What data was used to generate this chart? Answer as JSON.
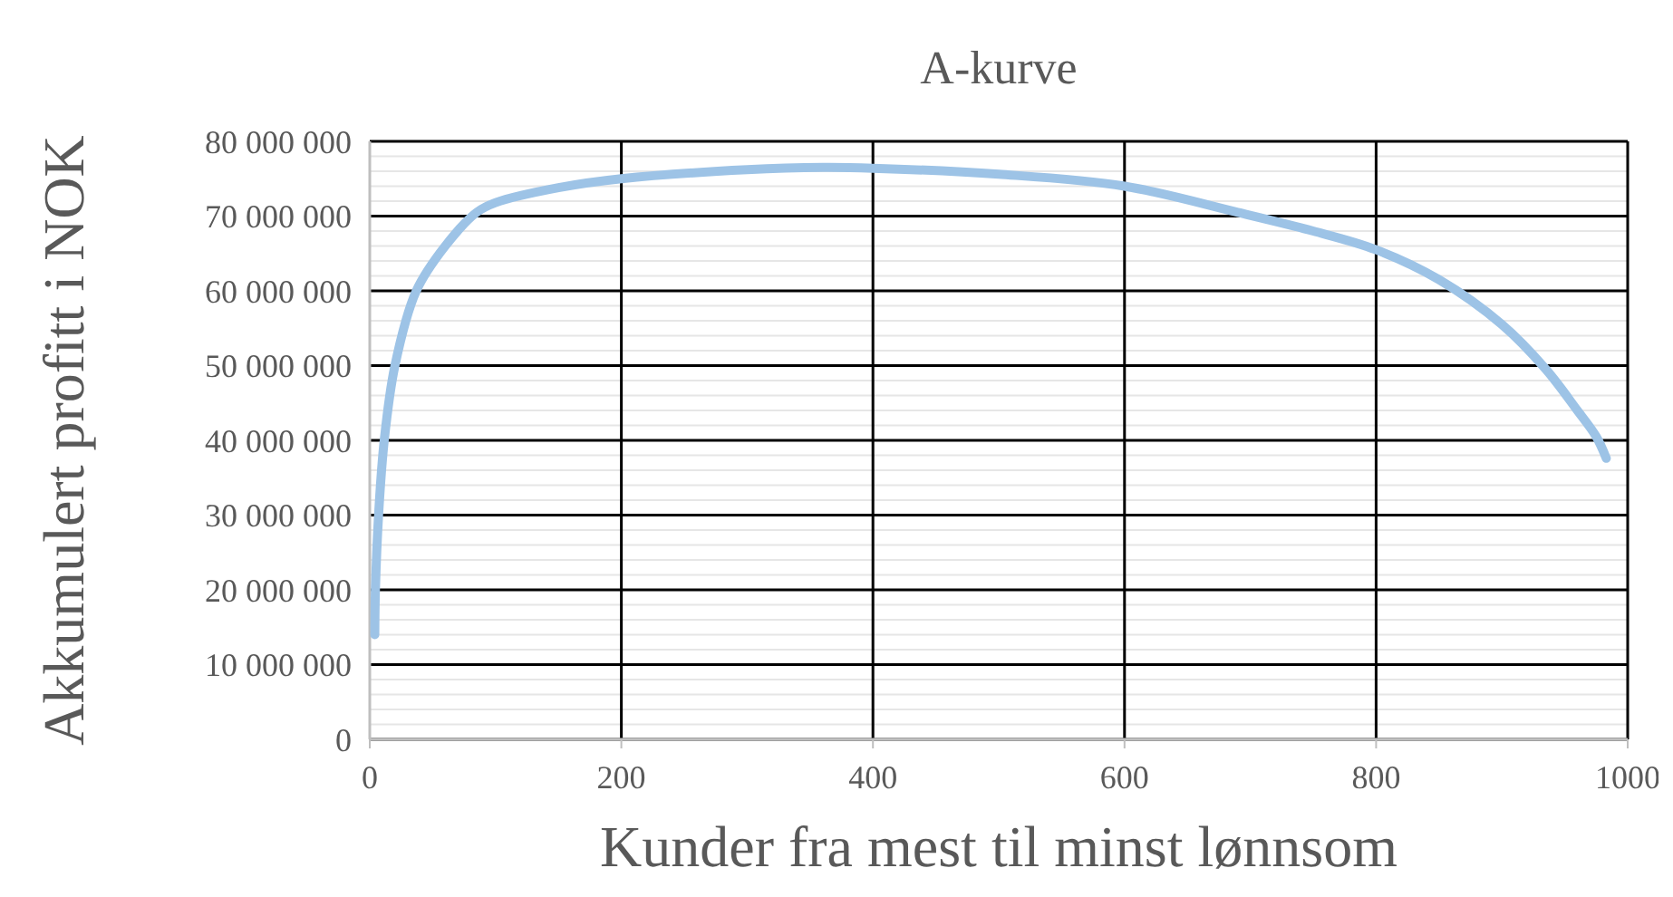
{
  "chart_data": {
    "type": "line",
    "title": "A-kurve",
    "xlabel": "Kunder fra mest til minst lønnsom",
    "ylabel": "Akkumulert profitt i NOK",
    "series": [
      {
        "color": "#9dc3e6",
        "x": [
          4,
          4.5,
          7,
          11.5,
          20,
          37,
          60,
          85,
          100,
          150,
          200,
          300,
          360,
          400,
          500,
          600,
          690,
          750,
          800,
          850,
          900,
          935,
          960,
          975,
          983
        ],
        "values": [
          14000000,
          20000000,
          30000000,
          40000000,
          50000000,
          60000000,
          66000000,
          70500000,
          71800000,
          73800000,
          75000000,
          76200000,
          76500000,
          76400000,
          75600000,
          74000000,
          70500000,
          68000000,
          65500000,
          61500000,
          55500000,
          49500000,
          44000000,
          40500000,
          37600000
        ]
      }
    ],
    "xlim": [
      0,
      1000
    ],
    "xticks": [
      0,
      200,
      400,
      600,
      800,
      1000
    ],
    "ylim": [
      0,
      80000000
    ],
    "yticks": [
      {
        "value": 0,
        "label": "0"
      },
      {
        "value": 2000000,
        "label": null
      },
      {
        "value": 4000000,
        "label": null
      },
      {
        "value": 6000000,
        "label": null
      },
      {
        "value": 8000000,
        "label": null
      },
      {
        "value": 10000000,
        "label": "10 000 000"
      },
      {
        "value": 12000000,
        "label": null
      },
      {
        "value": 14000000,
        "label": null
      },
      {
        "value": 16000000,
        "label": null
      },
      {
        "value": 18000000,
        "label": null
      },
      {
        "value": 20000000,
        "label": "20 000 000"
      },
      {
        "value": 22000000,
        "label": null
      },
      {
        "value": 24000000,
        "label": null
      },
      {
        "value": 26000000,
        "label": null
      },
      {
        "value": 28000000,
        "label": null
      },
      {
        "value": 30000000,
        "label": "30 000 000"
      },
      {
        "value": 32000000,
        "label": null
      },
      {
        "value": 34000000,
        "label": null
      },
      {
        "value": 36000000,
        "label": null
      },
      {
        "value": 38000000,
        "label": null
      },
      {
        "value": 40000000,
        "label": "40 000 000"
      },
      {
        "value": 42000000,
        "label": null
      },
      {
        "value": 44000000,
        "label": null
      },
      {
        "value": 46000000,
        "label": null
      },
      {
        "value": 48000000,
        "label": null
      },
      {
        "value": 50000000,
        "label": "50 000 000"
      },
      {
        "value": 52000000,
        "label": null
      },
      {
        "value": 54000000,
        "label": null
      },
      {
        "value": 56000000,
        "label": null
      },
      {
        "value": 58000000,
        "label": null
      },
      {
        "value": 60000000,
        "label": "60 000 000"
      },
      {
        "value": 62000000,
        "label": null
      },
      {
        "value": 64000000,
        "label": null
      },
      {
        "value": 66000000,
        "label": null
      },
      {
        "value": 68000000,
        "label": null
      },
      {
        "value": 70000000,
        "label": "70 000 000"
      },
      {
        "value": 72000000,
        "label": null
      },
      {
        "value": 74000000,
        "label": null
      },
      {
        "value": 76000000,
        "label": null
      },
      {
        "value": 78000000,
        "label": null
      },
      {
        "value": 80000000,
        "label": "80 000 000"
      }
    ],
    "grid": true,
    "marker": "none",
    "line_style": "solid"
  }
}
